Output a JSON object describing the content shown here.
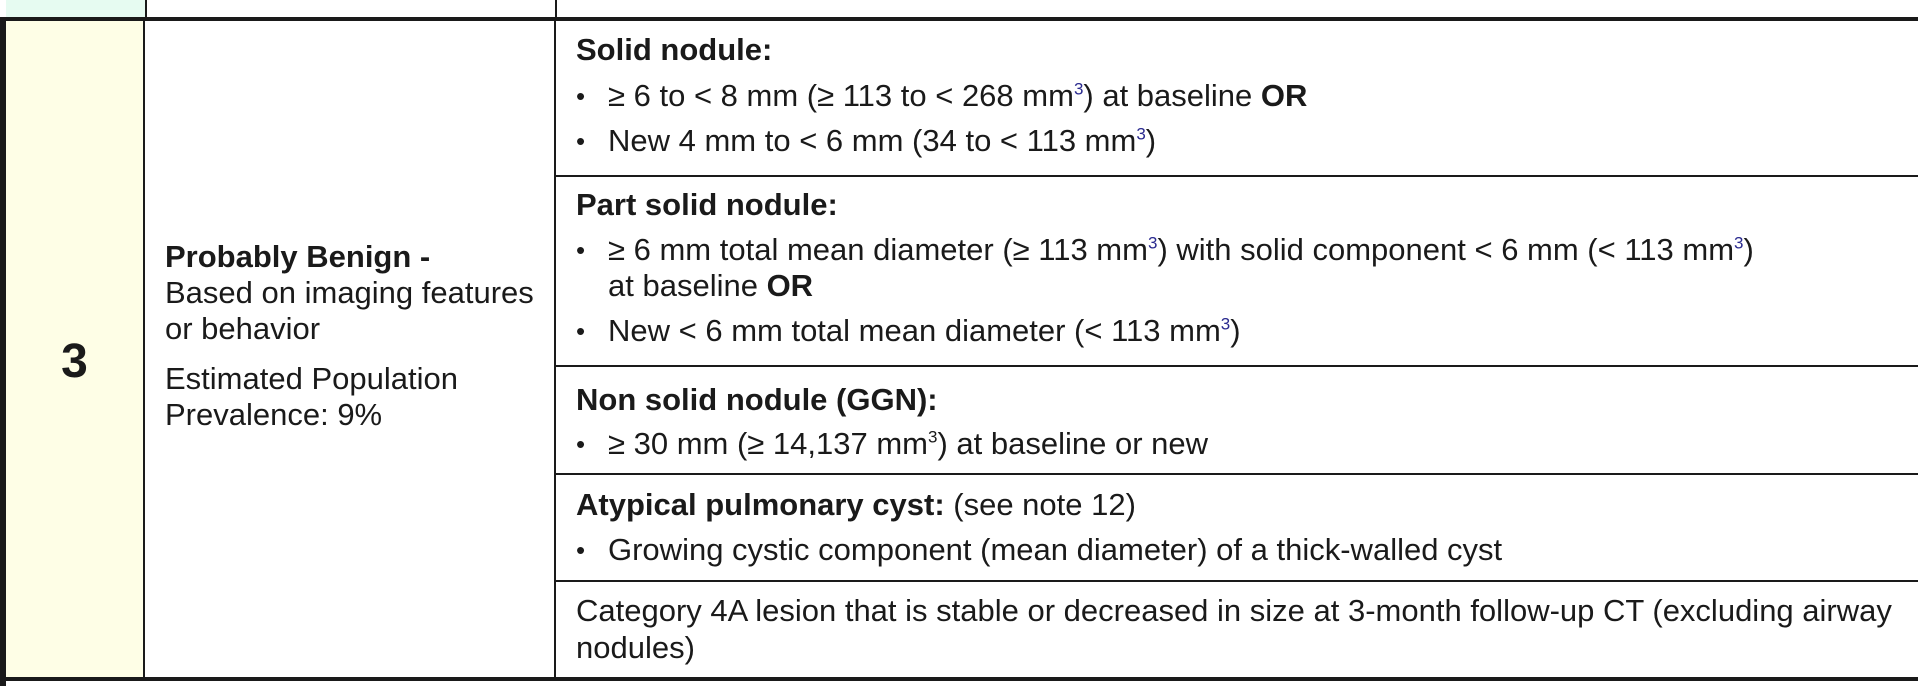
{
  "category": {
    "number": "3",
    "title": "Probably Benign -",
    "subtitle": "Based on imaging features or behavior",
    "prevalence": "Estimated Population Prevalence: 9%"
  },
  "sections": {
    "solid": {
      "heading": "Solid nodule:",
      "item1": {
        "a": "≥ 6 to < 8 mm (≥ 113 to < 268 mm",
        "sup": "3",
        "b": ") at baseline ",
        "or": "OR"
      },
      "item2": {
        "a": "New 4 mm to < 6 mm (34 to < 113 mm",
        "sup": "3",
        "b": ")"
      }
    },
    "part_solid": {
      "heading": "Part solid nodule:",
      "item1": {
        "a": "≥ 6 mm total mean diameter (≥ 113 mm",
        "sup1": "3",
        "b": ") with solid component < 6 mm (< 113 mm",
        "sup2": "3",
        "c": ")",
        "d": "at baseline ",
        "or": "OR"
      },
      "item2": {
        "a": "New < 6 mm total mean diameter (< 113 mm",
        "sup": "3",
        "b": ")"
      }
    },
    "non_solid": {
      "heading": "Non solid nodule (GGN):",
      "item1": {
        "a": "≥ 30 mm (≥ 14,137 mm",
        "sup": "3",
        "b": ") at baseline or new"
      }
    },
    "cyst": {
      "heading": "Atypical pulmonary cyst:",
      "note": " (see note 12)",
      "item1": "Growing cystic component (mean diameter) of a thick-walled cyst"
    },
    "category4a": {
      "text": "Category 4A lesion that is stable or decreased in size at 3-month follow-up CT (excluding airway nodules)"
    }
  }
}
